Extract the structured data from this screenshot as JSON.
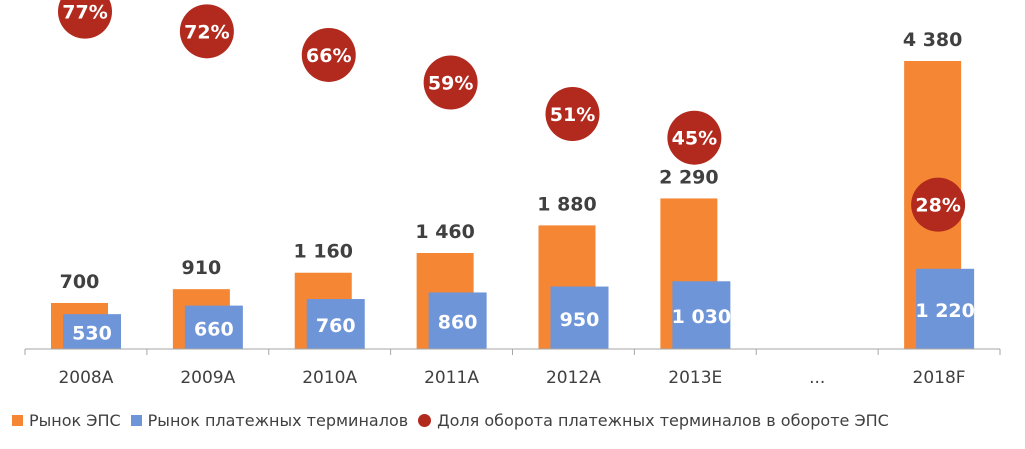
{
  "colors": {
    "eps_market": "#F58634",
    "terminal_market": "#6F95D9",
    "share": "#B22A1E",
    "axis": "#A6A6A6",
    "label_text": "#404040"
  },
  "legend": {
    "items": [
      {
        "label": "Рынок ЭПС",
        "shape": "square",
        "color": "#F58634"
      },
      {
        "label": "Рынок платежных терминалов",
        "shape": "square",
        "color": "#6F95D9"
      },
      {
        "label": "Доля оборота платежных терминалов в обороте ЭПС",
        "shape": "circle",
        "color": "#B22A1E"
      }
    ]
  },
  "chart_data": {
    "type": "bar",
    "categories": [
      "2008A",
      "2009A",
      "2010A",
      "2011A",
      "2012A",
      "2013E",
      "...",
      "2018F"
    ],
    "series": [
      {
        "name": "Рынок ЭПС",
        "values": [
          700,
          910,
          1160,
          1460,
          1880,
          2290,
          null,
          4380
        ],
        "labels": [
          "700",
          "910",
          "1 160",
          "1 460",
          "1 880",
          "2 290",
          "",
          "4 380"
        ]
      },
      {
        "name": "Рынок платежных терминалов",
        "values": [
          530,
          660,
          760,
          860,
          950,
          1030,
          null,
          1220
        ],
        "labels": [
          "530",
          "660",
          "760",
          "860",
          "950",
          "1 030",
          "",
          "1 220"
        ]
      },
      {
        "name": "Доля оборота платежных терминалов в обороте ЭПС",
        "values": [
          77,
          72,
          66,
          59,
          51,
          45,
          null,
          28
        ],
        "labels": [
          "77%",
          "72%",
          "66%",
          "59%",
          "51%",
          "45%",
          "",
          "28%"
        ],
        "unit": "%"
      }
    ],
    "ylim": [
      0,
      4600
    ],
    "grid": false,
    "legend_position": "bottom"
  }
}
